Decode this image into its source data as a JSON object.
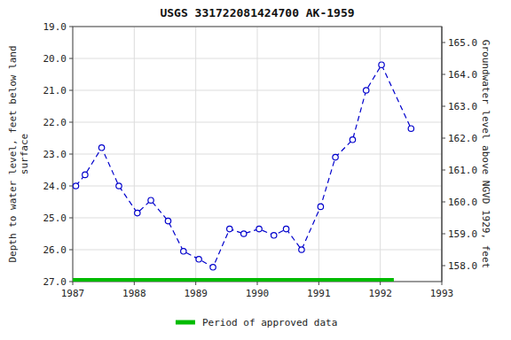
{
  "chart_data": {
    "type": "line",
    "title": "USGS 331722081424700 AK-1959",
    "y_label": "Depth to water level, feet below land\nsurface",
    "y2_label": "Groundwater level above NGVD 1929, feet",
    "xlim": [
      1987.0,
      1993.0
    ],
    "xticks": [
      1987,
      1988,
      1989,
      1990,
      1991,
      1992,
      1993
    ],
    "ylim": [
      27.0,
      19.0
    ],
    "yticks": [
      {
        "value": 19.0,
        "label": "19.0"
      },
      {
        "value": 20.0,
        "label": "20.0"
      },
      {
        "value": 21.0,
        "label": "21.0"
      },
      {
        "value": 22.0,
        "label": "22.0"
      },
      {
        "value": 23.0,
        "label": "23.0"
      },
      {
        "value": 24.0,
        "label": "24.0"
      },
      {
        "value": 25.0,
        "label": "25.0"
      },
      {
        "value": 26.0,
        "label": "26.0"
      },
      {
        "value": 27.0,
        "label": "27.0"
      }
    ],
    "y2lim": [
      157.5,
      165.5
    ],
    "y2ticks": [
      {
        "value": 158.0,
        "label": "158.0"
      },
      {
        "value": 159.0,
        "label": "159.0"
      },
      {
        "value": 160.0,
        "label": "160.0"
      },
      {
        "value": 161.0,
        "label": "161.0"
      },
      {
        "value": 162.0,
        "label": "162.0"
      },
      {
        "value": 163.0,
        "label": "163.0"
      },
      {
        "value": 164.0,
        "label": "164.0"
      },
      {
        "value": 165.0,
        "label": "165.0"
      }
    ],
    "grid": true,
    "legend": "bottom",
    "series": [
      {
        "color": "#0000cc",
        "marker": "circle",
        "line_style": "dashed",
        "x": [
          1987.05,
          1987.2,
          1987.47,
          1987.75,
          1988.05,
          1988.27,
          1988.55,
          1988.8,
          1989.05,
          1989.28,
          1989.55,
          1989.78,
          1990.03,
          1990.27,
          1990.47,
          1990.72,
          1991.03,
          1991.27,
          1991.55,
          1991.77,
          1992.02,
          1992.5
        ],
        "values": [
          24.0,
          23.65,
          22.8,
          24.0,
          24.85,
          24.45,
          25.1,
          26.05,
          26.3,
          26.55,
          25.35,
          25.5,
          25.35,
          25.55,
          25.35,
          26.0,
          24.65,
          23.1,
          22.55,
          21.0,
          20.2,
          22.2
        ]
      },
      {
        "name": "Period of approved data",
        "color": "#00bb00",
        "marker": "none",
        "line_style": "solid",
        "x": [
          1987.0,
          1992.22
        ],
        "values": [
          27.0,
          27.0
        ]
      }
    ]
  }
}
